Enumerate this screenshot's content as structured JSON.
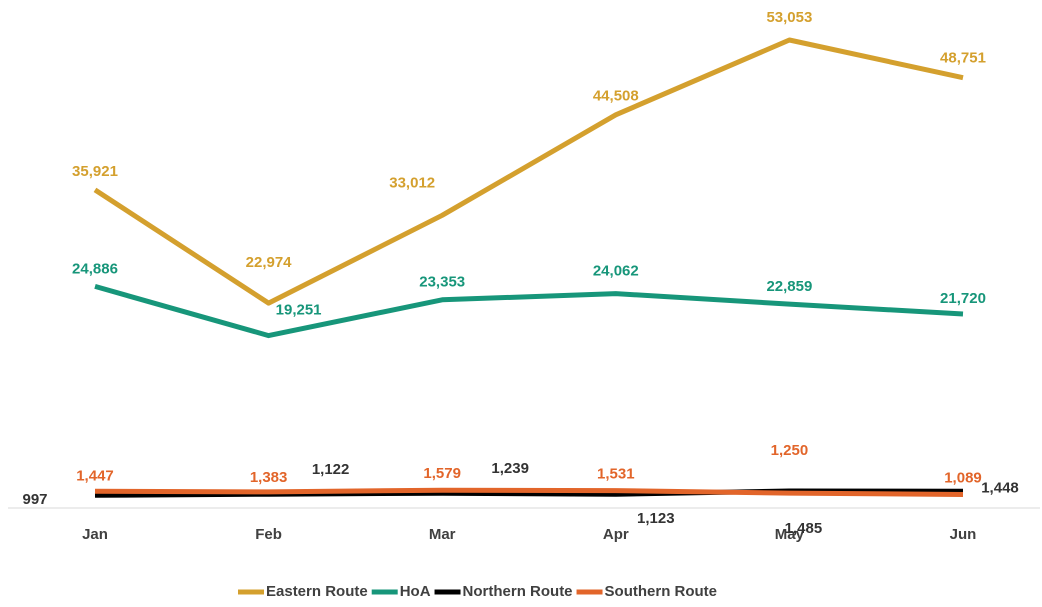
{
  "chart_data": {
    "type": "line",
    "categories": [
      "Jan",
      "Feb",
      "Mar",
      "Apr",
      "May",
      "Jun"
    ],
    "ylim": [
      0,
      55000
    ],
    "legend": "bottom",
    "series": [
      {
        "name": "Eastern Route",
        "color": "#d4a02e",
        "values": [
          35921,
          22974,
          33012,
          44508,
          53053,
          48751
        ],
        "value_labels": [
          "35,921",
          "22,974",
          "33,012",
          "44,508",
          "53,053",
          "48,751"
        ]
      },
      {
        "name": "HoA",
        "color": "#17967a",
        "values": [
          24886,
          19251,
          23353,
          24062,
          22859,
          21720
        ],
        "value_labels": [
          "24,886",
          "19,251",
          "23,353",
          "24,062",
          "22,859",
          "21,720"
        ]
      },
      {
        "name": "Northern Route",
        "color": "#000000",
        "values": [
          997,
          1122,
          1239,
          1123,
          1485,
          1448
        ],
        "value_labels": [
          "997",
          "1,122",
          "1,239",
          "1,123",
          "1,485",
          "1,448"
        ]
      },
      {
        "name": "Southern Route",
        "color": "#e2652a",
        "values": [
          1447,
          1383,
          1579,
          1531,
          1250,
          1089
        ],
        "value_labels": [
          "1,447",
          "1,383",
          "1,579",
          "1,531",
          "1,250",
          "1,089"
        ]
      }
    ]
  }
}
